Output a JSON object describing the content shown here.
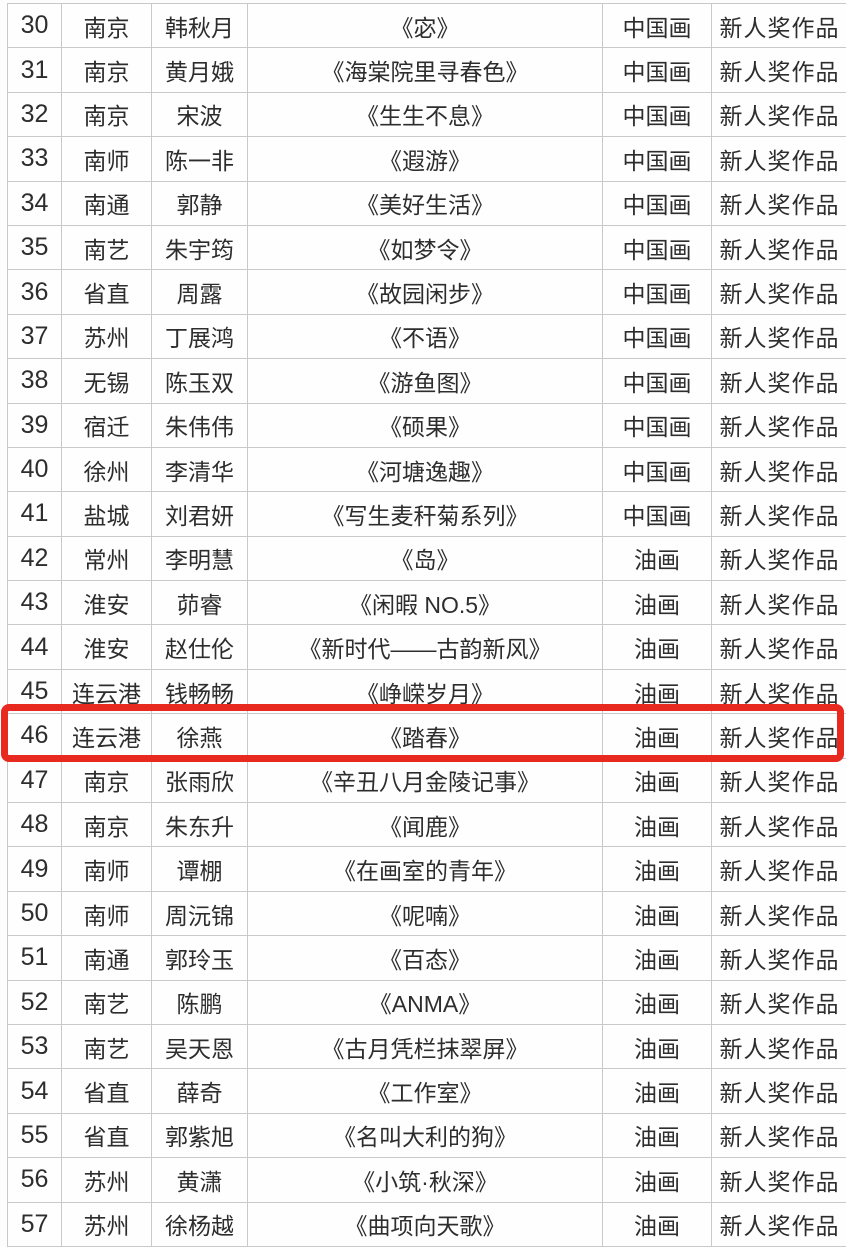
{
  "table": {
    "rows": [
      {
        "no": "30",
        "city": "南京",
        "name": "韩秋月",
        "title": "《宓》",
        "category": "中国画",
        "award": "新人奖作品"
      },
      {
        "no": "31",
        "city": "南京",
        "name": "黄月娥",
        "title": "《海棠院里寻春色》",
        "category": "中国画",
        "award": "新人奖作品"
      },
      {
        "no": "32",
        "city": "南京",
        "name": "宋波",
        "title": "《生生不息》",
        "category": "中国画",
        "award": "新人奖作品"
      },
      {
        "no": "33",
        "city": "南师",
        "name": "陈一非",
        "title": "《遐游》",
        "category": "中国画",
        "award": "新人奖作品"
      },
      {
        "no": "34",
        "city": "南通",
        "name": "郭静",
        "title": "《美好生活》",
        "category": "中国画",
        "award": "新人奖作品"
      },
      {
        "no": "35",
        "city": "南艺",
        "name": "朱宇筠",
        "title": "《如梦令》",
        "category": "中国画",
        "award": "新人奖作品"
      },
      {
        "no": "36",
        "city": "省直",
        "name": "周露",
        "title": "《故园闲步》",
        "category": "中国画",
        "award": "新人奖作品"
      },
      {
        "no": "37",
        "city": "苏州",
        "name": "丁展鸿",
        "title": "《不语》",
        "category": "中国画",
        "award": "新人奖作品"
      },
      {
        "no": "38",
        "city": "无锡",
        "name": "陈玉双",
        "title": "《游鱼图》",
        "category": "中国画",
        "award": "新人奖作品"
      },
      {
        "no": "39",
        "city": "宿迁",
        "name": "朱伟伟",
        "title": "《硕果》",
        "category": "中国画",
        "award": "新人奖作品"
      },
      {
        "no": "40",
        "city": "徐州",
        "name": "李清华",
        "title": "《河塘逸趣》",
        "category": "中国画",
        "award": "新人奖作品"
      },
      {
        "no": "41",
        "city": "盐城",
        "name": "刘君妍",
        "title": "《写生麦秆菊系列》",
        "category": "中国画",
        "award": "新人奖作品"
      },
      {
        "no": "42",
        "city": "常州",
        "name": "李明慧",
        "title": "《岛》",
        "category": "油画",
        "award": "新人奖作品"
      },
      {
        "no": "43",
        "city": "淮安",
        "name": "茆睿",
        "title": "《闲暇 NO.5》",
        "category": "油画",
        "award": "新人奖作品"
      },
      {
        "no": "44",
        "city": "淮安",
        "name": "赵仕伦",
        "title": "《新时代——古韵新风》",
        "category": "油画",
        "award": "新人奖作品"
      },
      {
        "no": "45",
        "city": "连云港",
        "name": "钱畅畅",
        "title": "《峥嵘岁月》",
        "category": "油画",
        "award": "新人奖作品"
      },
      {
        "no": "46",
        "city": "连云港",
        "name": "徐燕",
        "title": "《踏春》",
        "category": "油画",
        "award": "新人奖作品"
      },
      {
        "no": "47",
        "city": "南京",
        "name": "张雨欣",
        "title": "《辛丑八月金陵记事》",
        "category": "油画",
        "award": "新人奖作品"
      },
      {
        "no": "48",
        "city": "南京",
        "name": "朱东升",
        "title": "《闻鹿》",
        "category": "油画",
        "award": "新人奖作品"
      },
      {
        "no": "49",
        "city": "南师",
        "name": "谭棚",
        "title": "《在画室的青年》",
        "category": "油画",
        "award": "新人奖作品"
      },
      {
        "no": "50",
        "city": "南师",
        "name": "周沅锦",
        "title": "《呢喃》",
        "category": "油画",
        "award": "新人奖作品"
      },
      {
        "no": "51",
        "city": "南通",
        "name": "郭玲玉",
        "title": "《百态》",
        "category": "油画",
        "award": "新人奖作品"
      },
      {
        "no": "52",
        "city": "南艺",
        "name": "陈鹏",
        "title": "《ANMA》",
        "category": "油画",
        "award": "新人奖作品"
      },
      {
        "no": "53",
        "city": "南艺",
        "name": "吴天恩",
        "title": "《古月凭栏抹翠屏》",
        "category": "油画",
        "award": "新人奖作品"
      },
      {
        "no": "54",
        "city": "省直",
        "name": "薛奇",
        "title": "《工作室》",
        "category": "油画",
        "award": "新人奖作品"
      },
      {
        "no": "55",
        "city": "省直",
        "name": "郭紫旭",
        "title": "《名叫大利的狗》",
        "category": "油画",
        "award": "新人奖作品"
      },
      {
        "no": "56",
        "city": "苏州",
        "name": "黄潇",
        "title": "《小筑·秋深》",
        "category": "油画",
        "award": "新人奖作品"
      },
      {
        "no": "57",
        "city": "苏州",
        "name": "徐杨越",
        "title": "《曲项向天歌》",
        "category": "油画",
        "award": "新人奖作品"
      }
    ]
  },
  "annotation": {
    "type": "red-box",
    "row_no": "46",
    "color": "#e7291f"
  }
}
